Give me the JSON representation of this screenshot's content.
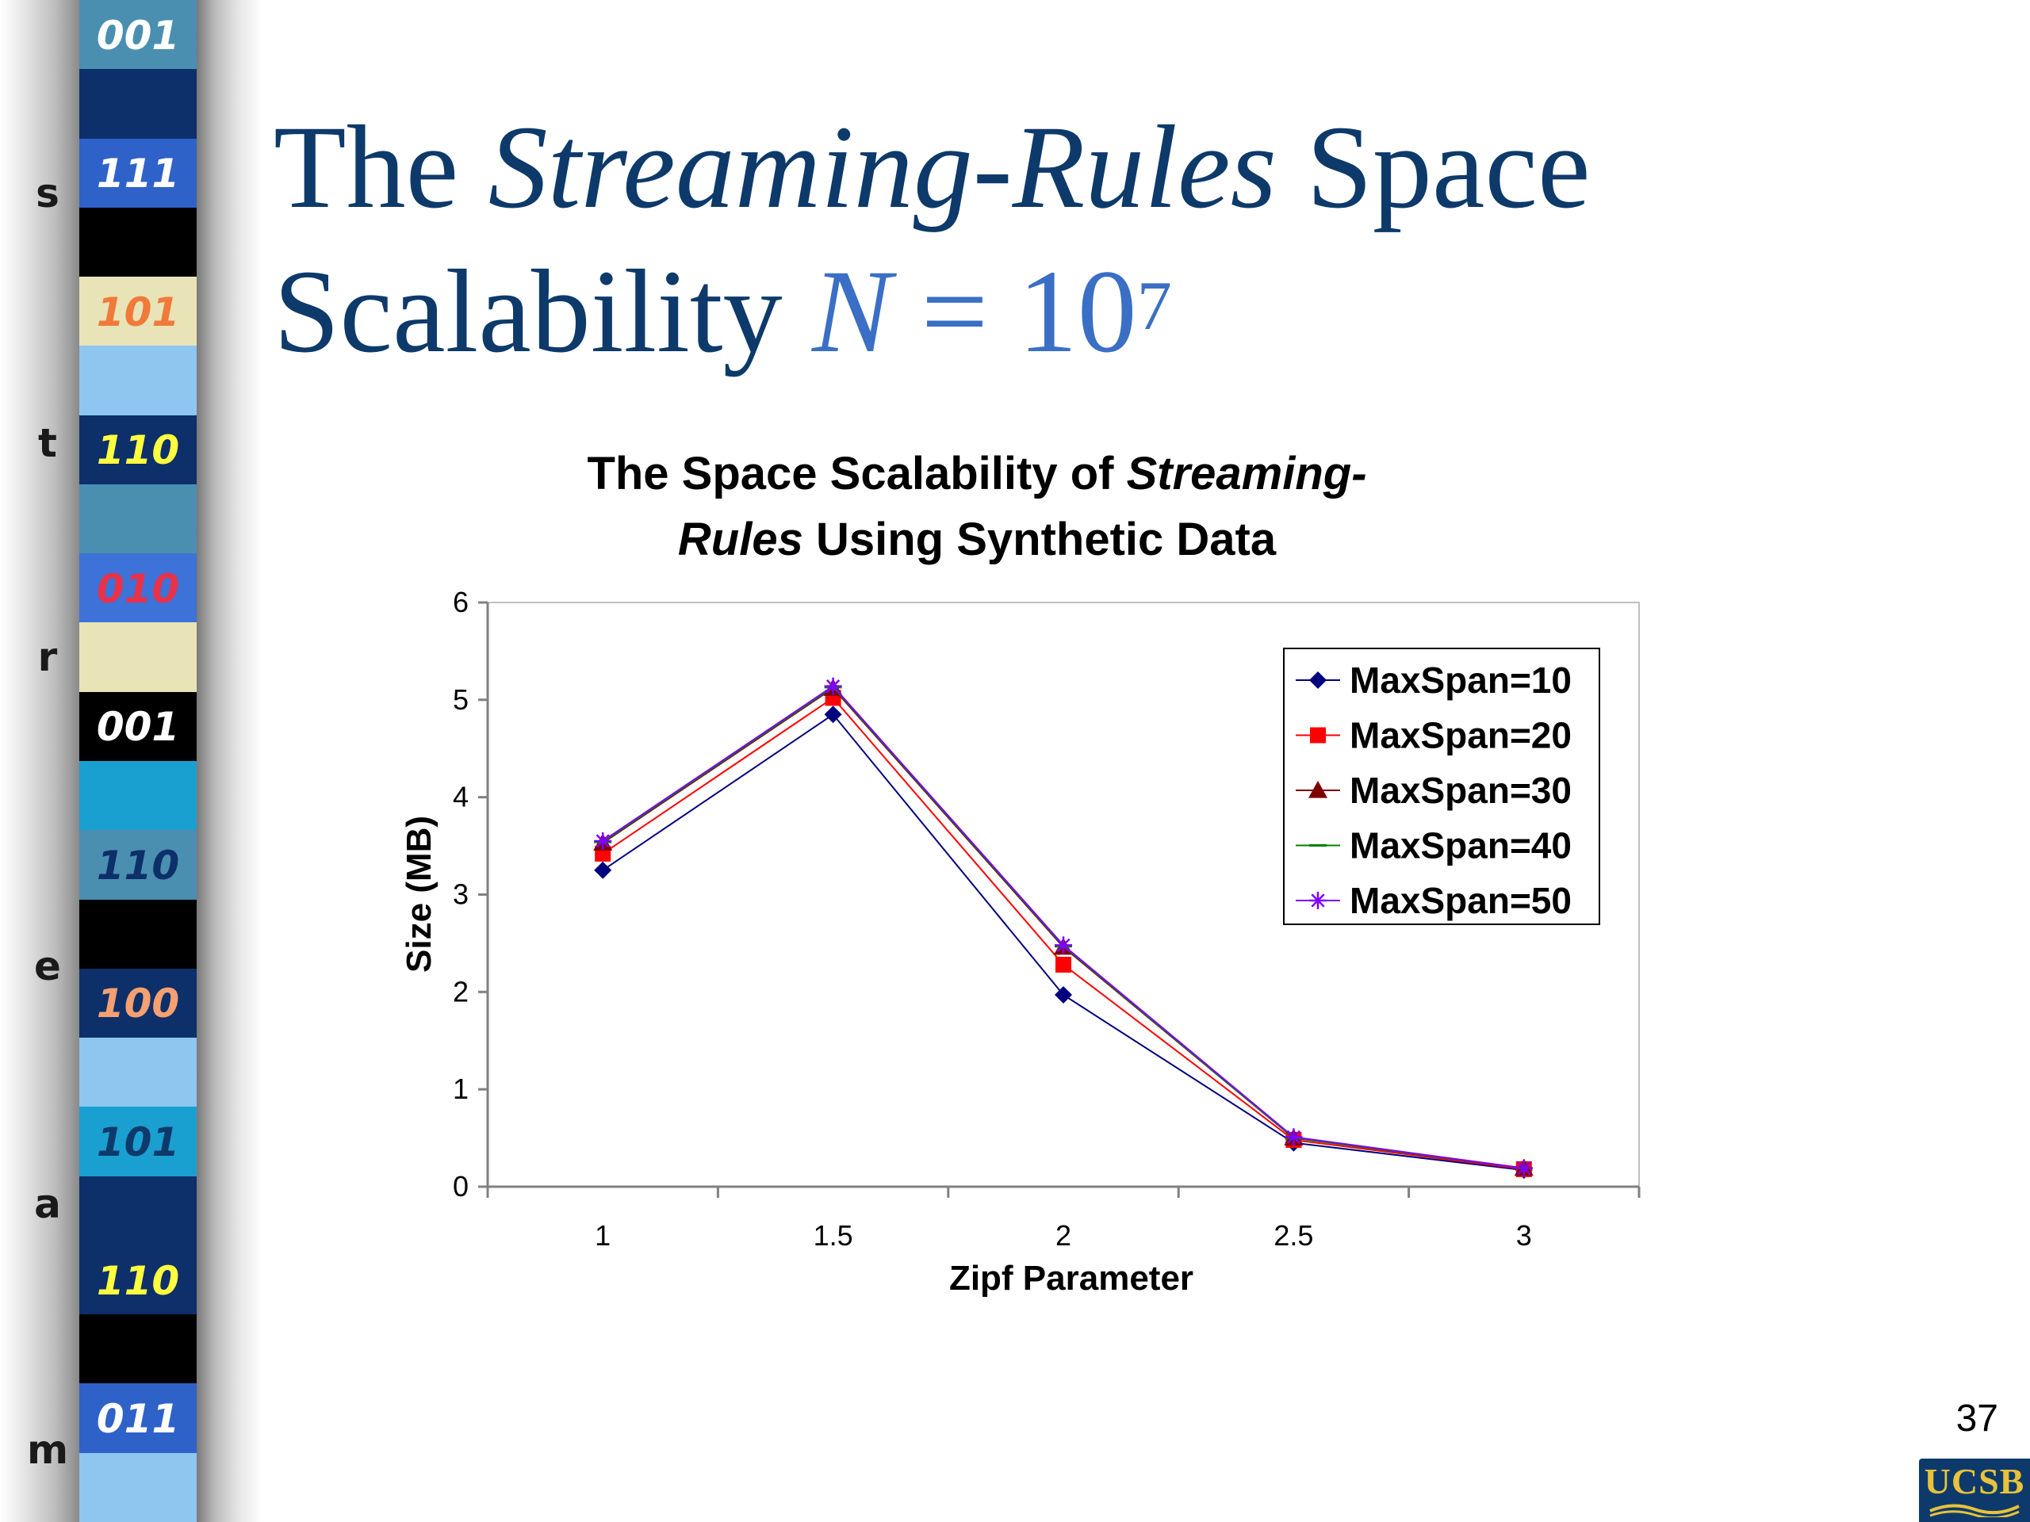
{
  "slide": {
    "title": {
      "part1": "The ",
      "part2": "Streaming-Rules",
      "part3": " Space",
      "line2_part1": "Scalability ",
      "eq_var": "N",
      "eq_rest": " = 10",
      "eq_exp": "7"
    },
    "page_number": "37",
    "logo_text": "UCSB",
    "colors": {
      "title": "#0d3a6a",
      "equation": "#3a6fc5"
    }
  },
  "stream": {
    "letters": [
      "s",
      "t",
      "r",
      "e",
      "a",
      "m"
    ],
    "codes": [
      {
        "text": "001",
        "color": "#ffffff",
        "band": "#4a8fb0"
      },
      {
        "text": "111",
        "color": "#ffffff",
        "band": "#2f62c8"
      },
      {
        "text": "101",
        "color": "#f07a3a",
        "band": "#e8e4b8"
      },
      {
        "text": "110",
        "color": "#ffff40",
        "band": "#0d2f6a"
      },
      {
        "text": "010",
        "color": "#e8324a",
        "band": "#3d72d8"
      },
      {
        "text": "001",
        "color": "#ffffff",
        "band": "#000000"
      },
      {
        "text": "110",
        "color": "#0d2f6a",
        "band": "#4a8fb0"
      },
      {
        "text": "100",
        "color": "#f5a070",
        "band": "#0d2f6a"
      },
      {
        "text": "101",
        "color": "#0d3a6a",
        "band": "#1aa0d0"
      },
      {
        "text": "110",
        "color": "#ffff40",
        "band": "#0d2f6a"
      },
      {
        "text": "011",
        "color": "#ffffff",
        "band": "#2f62c8"
      }
    ]
  },
  "chart_data": {
    "type": "line",
    "title": {
      "line1_plain": "The Space Scalability of ",
      "line1_italic": "Streaming-",
      "line2_italic": "Rules",
      "line2_plain": " Using Synthetic Data"
    },
    "xlabel": "Zipf Parameter",
    "ylabel": "Size (MB)",
    "x": [
      1,
      1.5,
      2,
      2.5,
      3
    ],
    "x_tick_labels": [
      "1",
      "1.5",
      "2",
      "2.5",
      "3"
    ],
    "y_ticks": [
      0,
      1,
      2,
      3,
      4,
      5,
      6
    ],
    "ylim": [
      0,
      6
    ],
    "xlim": [
      0.75,
      3.25
    ],
    "grid": false,
    "legend_position": "top-right",
    "series": [
      {
        "name": "MaxSpan=10",
        "values": [
          3.25,
          4.85,
          1.97,
          0.45,
          0.17
        ],
        "color": "#00007f",
        "marker": "diamond"
      },
      {
        "name": "MaxSpan=20",
        "values": [
          3.42,
          5.02,
          2.28,
          0.48,
          0.18
        ],
        "color": "#ff0000",
        "marker": "square"
      },
      {
        "name": "MaxSpan=30",
        "values": [
          3.53,
          5.12,
          2.46,
          0.5,
          0.19
        ],
        "color": "#7f0000",
        "marker": "triangle"
      },
      {
        "name": "MaxSpan=40",
        "values": [
          3.54,
          5.13,
          2.47,
          0.5,
          0.19
        ],
        "color": "#008000",
        "marker": "dash"
      },
      {
        "name": "MaxSpan=50",
        "values": [
          3.55,
          5.14,
          2.48,
          0.51,
          0.19
        ],
        "color": "#7f00ff",
        "marker": "star"
      }
    ]
  }
}
